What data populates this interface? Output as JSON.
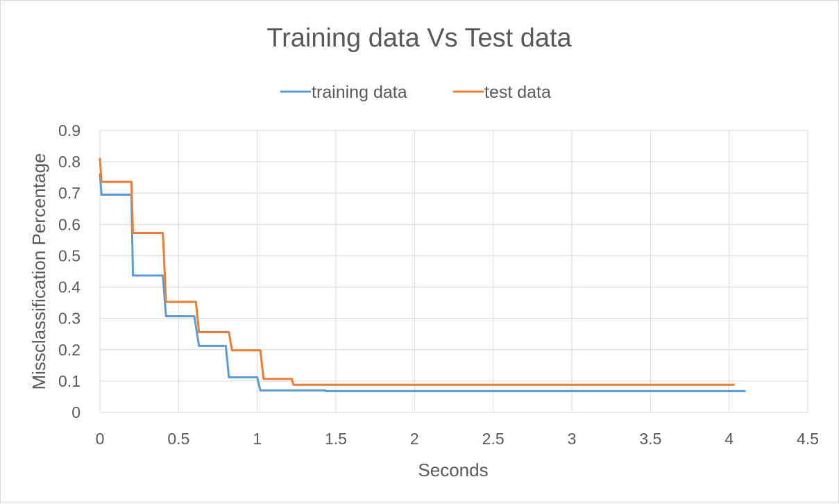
{
  "chart_data": {
    "type": "line",
    "title": "Training data Vs Test data",
    "xlabel": "Seconds",
    "ylabel": "Missclassification Percentage",
    "xlim": [
      0,
      4.5
    ],
    "ylim": [
      0,
      0.9
    ],
    "x_ticks": [
      "0",
      "0.5",
      "1",
      "1.5",
      "2",
      "2.5",
      "3",
      "3.5",
      "4",
      "4.5"
    ],
    "y_ticks": [
      "0",
      "0.1",
      "0.2",
      "0.3",
      "0.4",
      "0.5",
      "0.6",
      "0.7",
      "0.8",
      "0.9"
    ],
    "grid": true,
    "legend_position": "top",
    "series": [
      {
        "name": "training data",
        "color": "#5b9bd5",
        "points": [
          [
            0.0,
            0.76
          ],
          [
            0.01,
            0.695
          ],
          [
            0.2,
            0.695
          ],
          [
            0.21,
            0.437
          ],
          [
            0.4,
            0.437
          ],
          [
            0.42,
            0.307
          ],
          [
            0.6,
            0.307
          ],
          [
            0.63,
            0.212
          ],
          [
            0.8,
            0.212
          ],
          [
            0.82,
            0.112
          ],
          [
            1.0,
            0.112
          ],
          [
            1.02,
            0.07
          ],
          [
            1.43,
            0.07
          ],
          [
            1.44,
            0.068
          ],
          [
            4.1,
            0.068
          ]
        ]
      },
      {
        "name": "test data",
        "color": "#ed7d31",
        "points": [
          [
            0.0,
            0.81
          ],
          [
            0.01,
            0.736
          ],
          [
            0.2,
            0.736
          ],
          [
            0.21,
            0.573
          ],
          [
            0.4,
            0.573
          ],
          [
            0.42,
            0.353
          ],
          [
            0.61,
            0.353
          ],
          [
            0.63,
            0.256
          ],
          [
            0.82,
            0.256
          ],
          [
            0.84,
            0.198
          ],
          [
            1.02,
            0.198
          ],
          [
            1.04,
            0.107
          ],
          [
            1.22,
            0.107
          ],
          [
            1.23,
            0.088
          ],
          [
            4.03,
            0.088
          ]
        ]
      }
    ]
  }
}
